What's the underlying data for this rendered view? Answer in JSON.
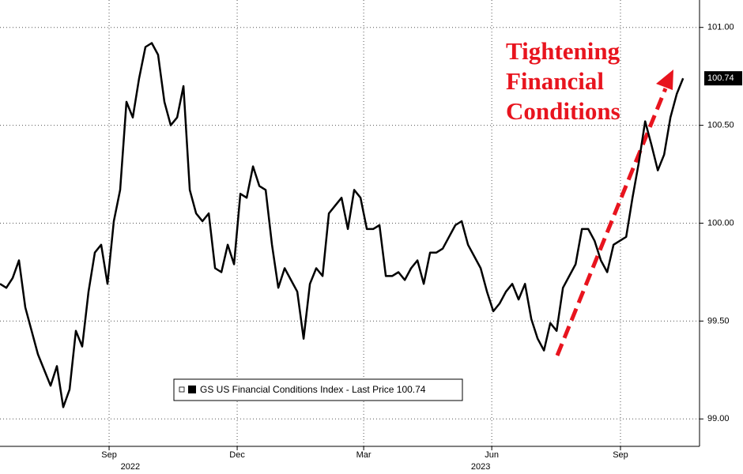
{
  "chart_data": {
    "type": "line",
    "series": [
      {
        "name": "GS US Financial Conditions Index - Last Price 100.74",
        "color": "#000000",
        "values": [
          99.69,
          99.67,
          99.72,
          99.81,
          99.57,
          99.45,
          99.33,
          99.25,
          99.17,
          99.27,
          99.06,
          99.15,
          99.45,
          99.37,
          99.65,
          99.85,
          99.89,
          99.69,
          100.01,
          100.17,
          100.62,
          100.54,
          100.74,
          100.9,
          100.92,
          100.86,
          100.62,
          100.5,
          100.54,
          100.7,
          100.17,
          100.05,
          100.01,
          100.05,
          99.77,
          99.75,
          99.89,
          99.79,
          100.15,
          100.13,
          100.29,
          100.19,
          100.17,
          99.89,
          99.67,
          99.77,
          99.71,
          99.65,
          99.41,
          99.69,
          99.77,
          99.73,
          100.05,
          100.09,
          100.13,
          99.97,
          100.17,
          100.13,
          99.97,
          99.97,
          99.99,
          99.73,
          99.73,
          99.75,
          99.71,
          99.77,
          99.81,
          99.69,
          99.85,
          99.85,
          99.87,
          99.93,
          99.99,
          100.01,
          99.89,
          99.83,
          99.77,
          99.65,
          99.55,
          99.59,
          99.65,
          99.69,
          99.61,
          99.69,
          99.51,
          99.41,
          99.35,
          99.49,
          99.45,
          99.67,
          99.73,
          99.79,
          99.97,
          99.97,
          99.91,
          99.81,
          99.75,
          99.89,
          99.91,
          99.93,
          100.13,
          100.31,
          100.52,
          100.4,
          100.27,
          100.35,
          100.54,
          100.66,
          100.74
        ]
      }
    ],
    "last_price": 100.74,
    "xlim": [
      0,
      110.6
    ],
    "xticks": [
      {
        "value": 17.25,
        "label": "Sep"
      },
      {
        "value": 37.5,
        "label": "Dec"
      },
      {
        "value": 57.5,
        "label": "Mar"
      },
      {
        "value": 77.75,
        "label": "Jun"
      },
      {
        "value": 98.1,
        "label": "Sep"
      }
    ],
    "year_labels": [
      {
        "value": 20.6,
        "label": "2022"
      },
      {
        "value": 76,
        "label": "2023"
      }
    ],
    "ylim": [
      98.86,
      101.14
    ],
    "yticks": [
      {
        "value": 99,
        "label": "99.00"
      },
      {
        "value": 99.5,
        "label": "99.50"
      },
      {
        "value": 100,
        "label": "100.00"
      },
      {
        "value": 100.5,
        "label": "100.50"
      },
      {
        "value": 101,
        "label": "101.00"
      }
    ],
    "grid": true,
    "annotation": [
      "Tightening",
      "Financial",
      "Conditions"
    ]
  }
}
